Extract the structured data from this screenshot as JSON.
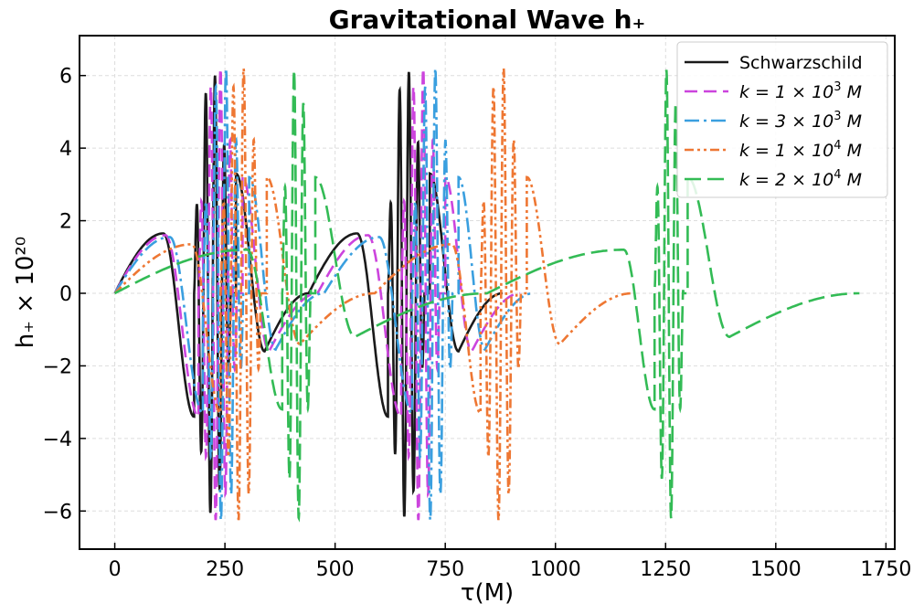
{
  "chart_data": {
    "type": "line",
    "title": "Gravitational Wave h₊",
    "xlabel": "τ(M)",
    "ylabel": "h₊ × 10²⁰",
    "xlim": [
      -80,
      1770
    ],
    "ylim": [
      -7.05,
      7.1
    ],
    "xticks": [
      0,
      250,
      500,
      750,
      1000,
      1250,
      1500,
      1750
    ],
    "xtick_labels": [
      "0",
      "250",
      "500",
      "750",
      "1000",
      "1250",
      "1500",
      "1750"
    ],
    "yticks": [
      -6,
      -4,
      -2,
      0,
      2,
      4,
      6
    ],
    "ytick_labels": [
      "−6",
      "−4",
      "−2",
      "0",
      "2",
      "4",
      "6"
    ],
    "grid": true,
    "legend_position": "top-right",
    "series": [
      {
        "name": "Schwarzschild",
        "color": "#1a1a1a",
        "dash": "solid",
        "cycle_period": 440,
        "cycles": 2,
        "segments": [
          {
            "x0": 0,
            "x1": 110,
            "kind": "rise",
            "ys": 0,
            "ye": 1.65
          },
          {
            "x0": 110,
            "x1": 180,
            "kind": "fall",
            "ys": 1.65,
            "ye": -3.4
          },
          {
            "x0": 180,
            "x1": 275,
            "kind": "osc",
            "amp": 6.1,
            "n": 4.5
          },
          {
            "x0": 275,
            "x1": 340,
            "kind": "fall",
            "ys": 3.3,
            "ye": -1.6
          },
          {
            "x0": 340,
            "x1": 440,
            "kind": "rise",
            "ys": -1.6,
            "ye": 0
          }
        ],
        "tail": [
          {
            "x0": 440,
            "x1": 550,
            "kind": "rise",
            "ys": 0,
            "ye": 1.65
          },
          {
            "x0": 550,
            "x1": 620,
            "kind": "fall",
            "ys": 1.65,
            "ye": -3.4
          },
          {
            "x0": 620,
            "x1": 715,
            "kind": "osc",
            "amp": 6.2,
            "n": 4.5
          },
          {
            "x0": 715,
            "x1": 780,
            "kind": "fall",
            "ys": 3.3,
            "ye": -1.6
          },
          {
            "x0": 780,
            "x1": 880,
            "kind": "rise",
            "ys": -1.6,
            "ye": 0
          }
        ]
      },
      {
        "name": "k = 1 × 10³ M",
        "label_main": "k = 1 × 10",
        "label_exp": "3",
        "label_unit": " M",
        "color": "#cc44dd",
        "dash": "14,7",
        "segments": [
          {
            "x0": 0,
            "x1": 115,
            "kind": "rise",
            "ys": 0,
            "ye": 1.6
          },
          {
            "x0": 115,
            "x1": 190,
            "kind": "fall",
            "ys": 1.6,
            "ye": -3.4
          },
          {
            "x0": 190,
            "x1": 290,
            "kind": "osc",
            "amp": 6.3,
            "n": 4.5
          },
          {
            "x0": 290,
            "x1": 350,
            "kind": "fall",
            "ys": 3.2,
            "ye": -1.6
          },
          {
            "x0": 350,
            "x1": 460,
            "kind": "rise",
            "ys": -1.6,
            "ye": 0
          },
          {
            "x0": 460,
            "x1": 575,
            "kind": "rise",
            "ys": 0,
            "ye": 1.6
          },
          {
            "x0": 575,
            "x1": 650,
            "kind": "fall",
            "ys": 1.6,
            "ye": -3.4
          },
          {
            "x0": 650,
            "x1": 750,
            "kind": "osc",
            "amp": 6.3,
            "n": 4.5
          },
          {
            "x0": 750,
            "x1": 810,
            "kind": "fall",
            "ys": 3.2,
            "ye": -1.6
          },
          {
            "x0": 810,
            "x1": 920,
            "kind": "rise",
            "ys": -1.6,
            "ye": 0
          }
        ]
      },
      {
        "name": "k = 3 × 10³ M",
        "label_main": "k = 3 × 10",
        "label_exp": "3",
        "label_unit": " M",
        "color": "#3a9fdf",
        "dash": "16,5,3,5",
        "segments": [
          {
            "x0": 0,
            "x1": 125,
            "kind": "rise",
            "ys": 0,
            "ye": 1.55
          },
          {
            "x0": 125,
            "x1": 200,
            "kind": "fall",
            "ys": 1.55,
            "ye": -3.3
          },
          {
            "x0": 200,
            "x1": 305,
            "kind": "osc",
            "amp": 6.3,
            "n": 4.5
          },
          {
            "x0": 305,
            "x1": 365,
            "kind": "fall",
            "ys": 3.2,
            "ye": -1.55
          },
          {
            "x0": 365,
            "x1": 475,
            "kind": "rise",
            "ys": -1.55,
            "ye": 0
          },
          {
            "x0": 475,
            "x1": 600,
            "kind": "rise",
            "ys": 0,
            "ye": 1.55
          },
          {
            "x0": 600,
            "x1": 675,
            "kind": "fall",
            "ys": 1.55,
            "ye": -3.3
          },
          {
            "x0": 675,
            "x1": 780,
            "kind": "osc",
            "amp": 6.3,
            "n": 4.5
          },
          {
            "x0": 780,
            "x1": 840,
            "kind": "fall",
            "ys": 3.2,
            "ye": -1.55
          },
          {
            "x0": 840,
            "x1": 950,
            "kind": "rise",
            "ys": -1.55,
            "ye": 0
          }
        ]
      },
      {
        "name": "k = 1 × 10⁴ M",
        "label_main": "k = 1 × 10",
        "label_exp": "4",
        "label_unit": " M",
        "color": "#ee7733",
        "dash": "10,4,3,4,3,4",
        "segments": [
          {
            "x0": 0,
            "x1": 175,
            "kind": "rise",
            "ys": 0,
            "ye": 1.35
          },
          {
            "x0": 175,
            "x1": 240,
            "kind": "fall",
            "ys": 1.35,
            "ye": -3.3
          },
          {
            "x0": 240,
            "x1": 345,
            "kind": "osc",
            "amp": 6.3,
            "n": 4.5
          },
          {
            "x0": 345,
            "x1": 420,
            "kind": "fall",
            "ys": 3.2,
            "ye": -1.4
          },
          {
            "x0": 420,
            "x1": 590,
            "kind": "rise",
            "ys": -1.4,
            "ye": 0
          },
          {
            "x0": 590,
            "x1": 765,
            "kind": "rise",
            "ys": 0,
            "ye": 1.35
          },
          {
            "x0": 765,
            "x1": 830,
            "kind": "fall",
            "ys": 1.35,
            "ye": -3.3
          },
          {
            "x0": 830,
            "x1": 935,
            "kind": "osc",
            "amp": 6.3,
            "n": 4.5
          },
          {
            "x0": 935,
            "x1": 1010,
            "kind": "fall",
            "ys": 3.2,
            "ye": -1.4
          },
          {
            "x0": 1010,
            "x1": 1175,
            "kind": "rise",
            "ys": -1.4,
            "ye": 0
          }
        ]
      },
      {
        "name": "k = 2 × 10⁴ M",
        "label_main": "k = 2 × 10",
        "label_exp": "4",
        "label_unit": " M",
        "color": "#33bb55",
        "dash": "18,7",
        "segments": [
          {
            "x0": 0,
            "x1": 300,
            "kind": "rise",
            "ys": 0,
            "ye": 1.2
          },
          {
            "x0": 300,
            "x1": 380,
            "kind": "fall",
            "ys": 1.2,
            "ye": -3.2
          },
          {
            "x0": 380,
            "x1": 455,
            "kind": "osc",
            "amp": 6.3,
            "n": 3.5
          },
          {
            "x0": 455,
            "x1": 545,
            "kind": "fall",
            "ys": 3.2,
            "ye": -1.2
          },
          {
            "x0": 545,
            "x1": 845,
            "kind": "rise",
            "ys": -1.2,
            "ye": 0
          },
          {
            "x0": 845,
            "x1": 1155,
            "kind": "rise",
            "ys": 0,
            "ye": 1.2
          },
          {
            "x0": 1155,
            "x1": 1225,
            "kind": "fall",
            "ys": 1.2,
            "ye": -3.2
          },
          {
            "x0": 1225,
            "x1": 1300,
            "kind": "osc",
            "amp": 6.3,
            "n": 3.5
          },
          {
            "x0": 1300,
            "x1": 1395,
            "kind": "fall",
            "ys": 3.2,
            "ye": -1.2
          },
          {
            "x0": 1395,
            "x1": 1690,
            "kind": "rise",
            "ys": -1.2,
            "ye": 0
          }
        ]
      }
    ]
  }
}
